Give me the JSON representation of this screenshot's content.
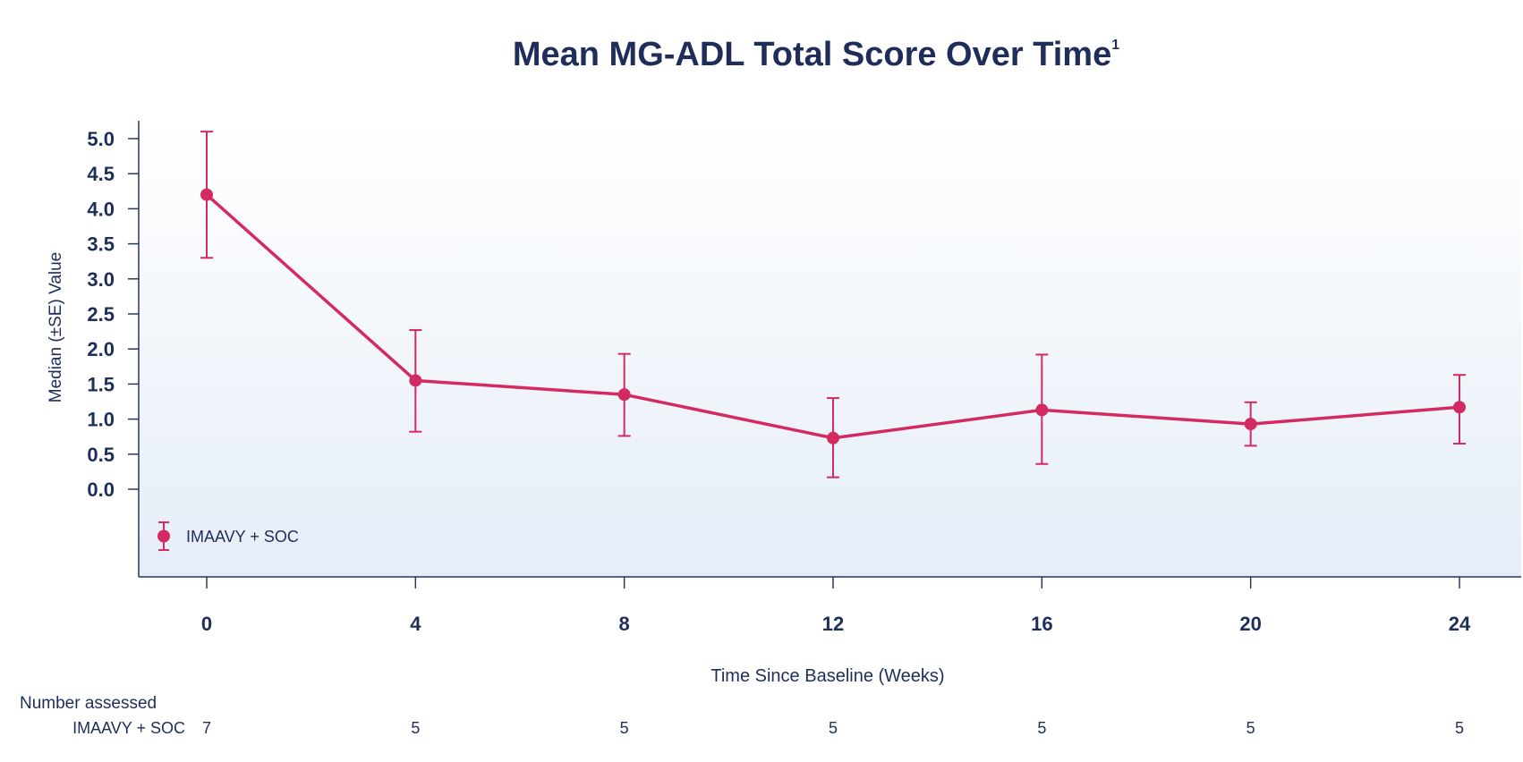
{
  "chart_data": {
    "type": "line",
    "title": "Mean MG-ADL Total Score Over Time",
    "title_superscript": "1",
    "xlabel": "Time Since Baseline (Weeks)",
    "ylabel": "Median (±SE) Value",
    "x": [
      0,
      4,
      8,
      12,
      16,
      20,
      24
    ],
    "x_tick_labels": [
      "0",
      "4",
      "8",
      "12",
      "16",
      "20",
      "24"
    ],
    "y_tick_labels": [
      "5.0",
      "4.5",
      "4.0",
      "3.5",
      "3.0",
      "2.5",
      "2.0",
      "1.5",
      "1.0",
      "0.5",
      "0.0"
    ],
    "y_ticks": [
      5.0,
      4.5,
      4.0,
      3.5,
      3.0,
      2.5,
      2.0,
      1.5,
      1.0,
      0.5,
      0.0
    ],
    "ylim": [
      0,
      5.0
    ],
    "grid": false,
    "legend_position": "bottom-left",
    "series": [
      {
        "name": "IMAAVY + SOC",
        "color": "#d42a62",
        "values": [
          4.2,
          1.55,
          1.35,
          0.73,
          1.13,
          0.93,
          1.17
        ],
        "error_upper": [
          5.1,
          2.27,
          1.93,
          1.3,
          1.92,
          1.24,
          1.63
        ],
        "error_lower": [
          3.3,
          0.82,
          0.76,
          0.17,
          0.36,
          0.62,
          0.65
        ]
      }
    ],
    "number_assessed": {
      "heading": "Number assessed",
      "row_label": "IMAAVY + SOC",
      "values": [
        "7",
        "5",
        "5",
        "5",
        "5",
        "5",
        "5"
      ]
    }
  },
  "colors": {
    "text": "#1f2d5a",
    "accent": "#d42a62",
    "axis": "#2a3760"
  }
}
